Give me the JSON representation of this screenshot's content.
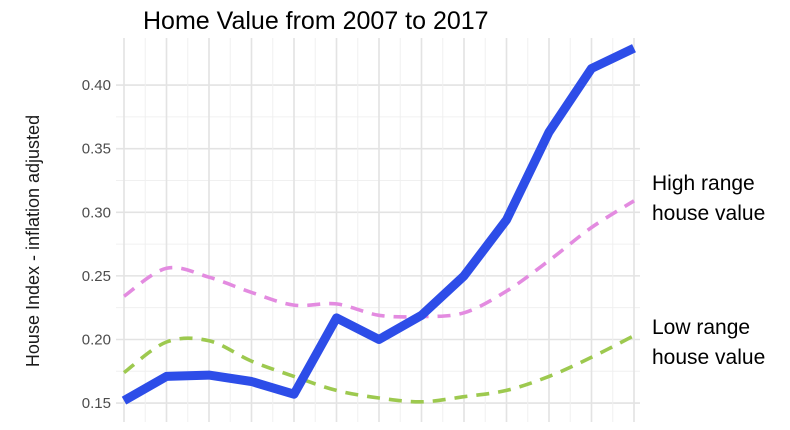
{
  "chart_data": {
    "type": "line",
    "title": "Home Value from 2007 to 2017",
    "xlabel": "",
    "ylabel": "House Index - inflation adjusted",
    "x": [
      1,
      2,
      3,
      4,
      5,
      6,
      7,
      8,
      9,
      10,
      11,
      12,
      13,
      14,
      15,
      16,
      17,
      18,
      19,
      20,
      21,
      22,
      23,
      24,
      25
    ],
    "xlim": [
      1,
      25
    ],
    "ylim": [
      0.143,
      0.437
    ],
    "yticks": [
      0.15,
      0.2,
      0.25,
      0.3,
      0.35,
      0.4
    ],
    "ytick_labels": [
      "0.15",
      "0.20",
      "0.25",
      "0.30",
      "0.35",
      "0.40"
    ],
    "grid": true,
    "legend": "none",
    "series": [
      {
        "color": "#2d4de8",
        "style": "solid",
        "points": [
          [
            1,
            0.152
          ],
          [
            3,
            0.171
          ],
          [
            5,
            0.172
          ],
          [
            7,
            0.167
          ],
          [
            9,
            0.157
          ],
          [
            11,
            0.217
          ],
          [
            13,
            0.2
          ],
          [
            15,
            0.219
          ],
          [
            17,
            0.25
          ],
          [
            19,
            0.294
          ],
          [
            21,
            0.363
          ],
          [
            23,
            0.413
          ],
          [
            25,
            0.429
          ]
        ]
      },
      {
        "color": "#e38be0",
        "style": "dashed",
        "points": [
          [
            1,
            0.234
          ],
          [
            3,
            0.256
          ],
          [
            5,
            0.249
          ],
          [
            7,
            0.237
          ],
          [
            9,
            0.227
          ],
          [
            11,
            0.228
          ],
          [
            13,
            0.219
          ],
          [
            15,
            0.218
          ],
          [
            17,
            0.221
          ],
          [
            19,
            0.238
          ],
          [
            21,
            0.262
          ],
          [
            23,
            0.288
          ],
          [
            25,
            0.309
          ]
        ]
      },
      {
        "color": "#9dc94f",
        "style": "dashed",
        "points": [
          [
            1,
            0.174
          ],
          [
            3,
            0.198
          ],
          [
            5,
            0.199
          ],
          [
            7,
            0.183
          ],
          [
            9,
            0.171
          ],
          [
            11,
            0.16
          ],
          [
            13,
            0.154
          ],
          [
            15,
            0.151
          ],
          [
            17,
            0.155
          ],
          [
            19,
            0.16
          ],
          [
            21,
            0.171
          ],
          [
            23,
            0.186
          ],
          [
            25,
            0.203
          ]
        ]
      }
    ],
    "annotations": [
      {
        "lines": [
          "High range",
          "house value"
        ],
        "color": "#000000"
      },
      {
        "lines": [
          "Low range",
          "house value"
        ],
        "color": "#000000"
      }
    ]
  }
}
